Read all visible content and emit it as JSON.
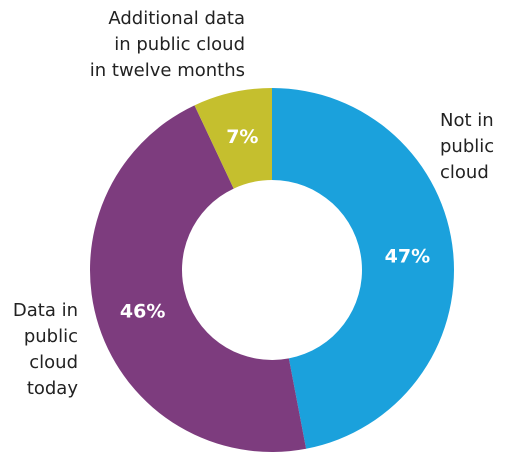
{
  "chart_data": {
    "type": "donut",
    "categories": [
      "Not in\npublic\ncloud",
      "Data in\npublic\ncloud\ntoday",
      "Additional data\nin public cloud\nin twelve months"
    ],
    "values": [
      47,
      46,
      7
    ],
    "value_labels": [
      "47%",
      "46%",
      "7%"
    ],
    "colors": [
      "#1ba1dc",
      "#7d3c7e",
      "#c5bf2e"
    ]
  }
}
